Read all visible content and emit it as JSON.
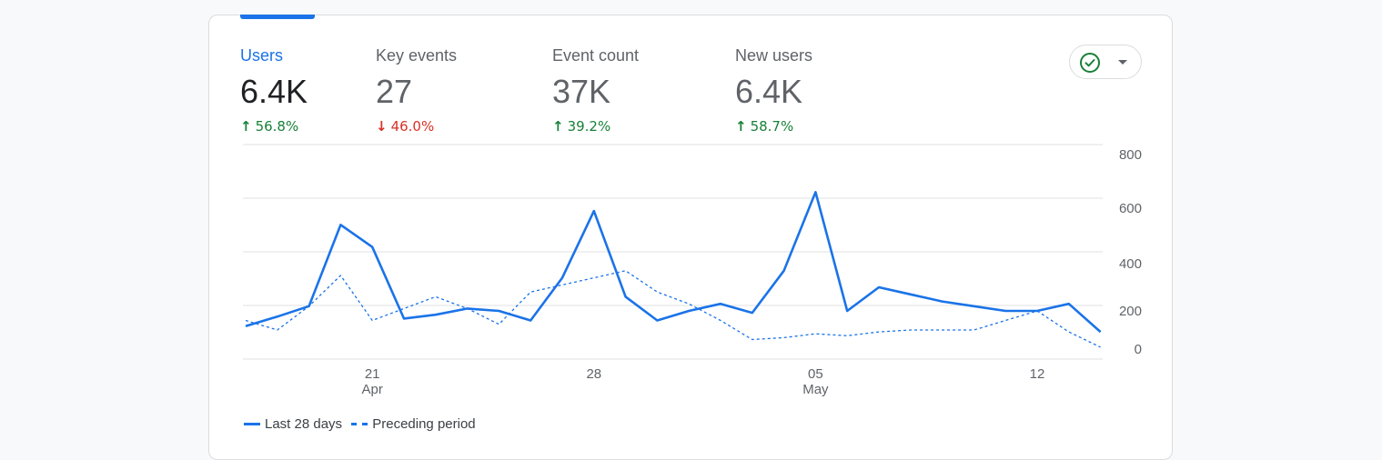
{
  "metrics": [
    {
      "label": "Users",
      "value": "6.4K",
      "direction": "up",
      "arrow": "↑",
      "change": "56.8%",
      "active": true
    },
    {
      "label": "Key events",
      "value": "27",
      "direction": "down",
      "arrow": "↓",
      "change": "46.0%",
      "active": false
    },
    {
      "label": "Event count",
      "value": "37K",
      "direction": "up",
      "arrow": "↑",
      "change": "39.2%",
      "active": false
    },
    {
      "label": "New users",
      "value": "6.4K",
      "direction": "up",
      "arrow": "↑",
      "change": "58.7%",
      "active": false
    }
  ],
  "status_button": {
    "icon": "check-circle-icon",
    "dropdown_icon": "caret-down-icon"
  },
  "colors": {
    "accent": "#1a73e8",
    "up": "#188038",
    "down": "#d93025",
    "grid": "#e0e0e0",
    "text_muted": "#5f6368"
  },
  "legend": {
    "current": "Last 28 days",
    "previous": "Preceding period"
  },
  "chart_data": {
    "type": "line",
    "ylim": [
      0,
      800
    ],
    "y_ticks": [
      0,
      200,
      400,
      600,
      800
    ],
    "x_tick_labels": [
      {
        "index": 4,
        "day": "21",
        "month": "Apr"
      },
      {
        "index": 11,
        "day": "28",
        "month": ""
      },
      {
        "index": 18,
        "day": "05",
        "month": "May"
      },
      {
        "index": 25,
        "day": "12",
        "month": ""
      }
    ],
    "series": [
      {
        "name": "Last 28 days",
        "style": "solid",
        "values": [
          120,
          170,
          220,
          540,
          460,
          160,
          180,
          210,
          200,
          150,
          340,
          590,
          260,
          150,
          200,
          230,
          190,
          370,
          660,
          200,
          300,
          270,
          240,
          220,
          200,
          200,
          230,
          90
        ]
      },
      {
        "name": "Preceding period",
        "style": "dashed",
        "values": [
          150,
          100,
          220,
          350,
          150,
          210,
          260,
          210,
          130,
          280,
          310,
          340,
          370,
          280,
          230,
          150,
          50,
          60,
          80,
          70,
          90,
          100,
          100,
          100,
          150,
          200,
          90,
          10
        ]
      }
    ]
  }
}
